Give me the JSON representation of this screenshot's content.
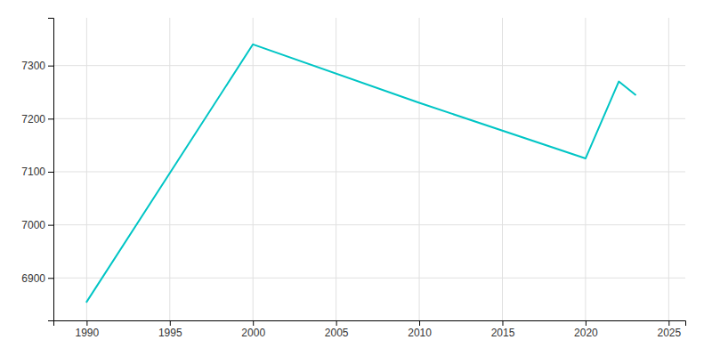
{
  "chart_data": {
    "type": "line",
    "x": [
      1990,
      2000,
      2010,
      2020,
      2022,
      2023
    ],
    "values": [
      6855,
      7340,
      7230,
      7125,
      7270,
      7245
    ],
    "color": "#00C5C5",
    "xlim": [
      1988,
      2026
    ],
    "ylim": [
      6820,
      7390
    ],
    "xticks": [
      1990,
      1995,
      2000,
      2005,
      2010,
      2015,
      2020,
      2025
    ],
    "yticks": [
      6900,
      7000,
      7100,
      7200,
      7300
    ],
    "grid": true
  }
}
